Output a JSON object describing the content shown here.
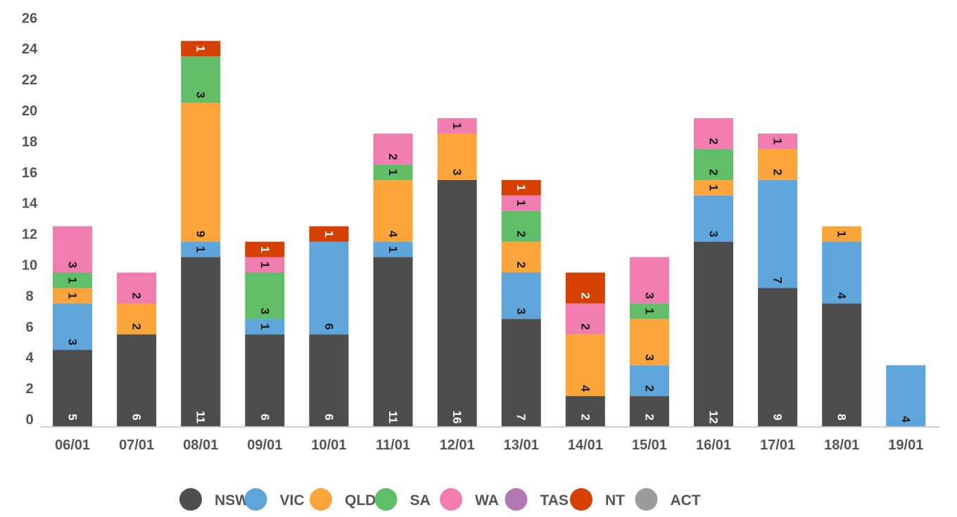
{
  "chart_data": {
    "type": "bar",
    "stacked": true,
    "categories": [
      "06/01",
      "07/01",
      "08/01",
      "09/01",
      "10/01",
      "11/01",
      "12/01",
      "13/01",
      "14/01",
      "15/01",
      "16/01",
      "17/01",
      "18/01",
      "19/01"
    ],
    "series": [
      {
        "name": "NSW",
        "color": "#4d4d4d",
        "label_color": "#ffffff",
        "values": [
          5,
          6,
          11,
          6,
          6,
          11,
          16,
          7,
          2,
          2,
          12,
          9,
          8,
          0
        ]
      },
      {
        "name": "VIC",
        "color": "#5da5da",
        "label_color": "#1a1a1a",
        "values": [
          3,
          0,
          1,
          1,
          6,
          1,
          0,
          3,
          0,
          2,
          3,
          7,
          4,
          4
        ]
      },
      {
        "name": "QLD",
        "color": "#faa43a",
        "label_color": "#1a1a1a",
        "values": [
          1,
          2,
          9,
          0,
          0,
          4,
          3,
          2,
          4,
          3,
          1,
          2,
          1,
          0
        ]
      },
      {
        "name": "SA",
        "color": "#60bd68",
        "label_color": "#1a1a1a",
        "values": [
          1,
          0,
          3,
          3,
          0,
          1,
          0,
          2,
          0,
          1,
          2,
          0,
          0,
          0
        ]
      },
      {
        "name": "WA",
        "color": "#f17cb0",
        "label_color": "#1a1a1a",
        "values": [
          3,
          2,
          0,
          1,
          0,
          2,
          1,
          1,
          2,
          3,
          2,
          1,
          0,
          0
        ]
      },
      {
        "name": "TAS",
        "color": "#b276b2",
        "label_color": "#1a1a1a",
        "values": [
          0,
          0,
          0,
          0,
          0,
          0,
          0,
          0,
          0,
          0,
          0,
          0,
          0,
          0
        ]
      },
      {
        "name": "NT",
        "color": "#d64000",
        "label_color": "#ffffff",
        "values": [
          0,
          0,
          1,
          1,
          1,
          0,
          0,
          1,
          2,
          0,
          0,
          0,
          0,
          0
        ]
      },
      {
        "name": "ACT",
        "color": "#9b9b9b",
        "label_color": "#1a1a1a",
        "values": [
          0,
          0,
          0,
          0,
          0,
          0,
          0,
          0,
          0,
          0,
          0,
          0,
          0,
          0
        ]
      }
    ],
    "yticks": [
      0,
      2,
      4,
      6,
      8,
      10,
      12,
      14,
      16,
      18,
      20,
      22,
      24,
      26
    ],
    "ylim": [
      0,
      26.5
    ],
    "legend_position": "bottom",
    "title": "",
    "xlabel": "",
    "ylabel": ""
  }
}
